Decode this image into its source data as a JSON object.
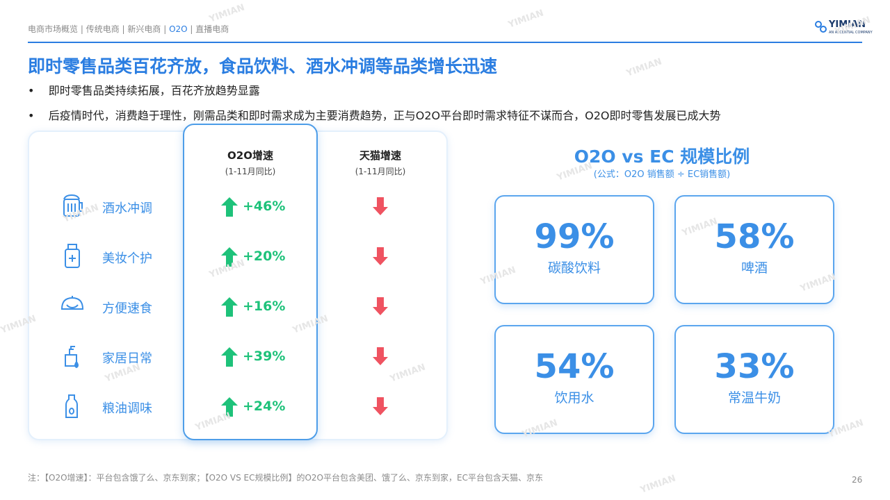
{
  "header": {
    "breadcrumb": [
      "电商市场概览",
      "传统电商",
      "新兴电商",
      "O2O",
      "直播电商"
    ],
    "logo": "YIMIAN",
    "logo_sub": "AN ASCENTIAL COMPANY"
  },
  "title": "即时零售品类百花齐放，食品饮料、酒水冲调等品类增长迅速",
  "bullets": [
    "即时零售品类持续拓展，百花齐放趋势显露",
    "后疫情时代，消费趋于理性，刚需品类和即时需求成为主要消费趋势，正与O2O平台即时需求特征不谋而合，O2O即时零售发展已成大势"
  ],
  "table": {
    "columns": [
      {
        "title": "O2O增速",
        "sub": "(1-11月同比)"
      },
      {
        "title": "天猫增速",
        "sub": "(1-11月同比)"
      }
    ],
    "rows": [
      {
        "category": "酒水冲调",
        "o2o": "+46%"
      },
      {
        "category": "美妆个护",
        "o2o": "+20%"
      },
      {
        "category": "方便速食",
        "o2o": "+16%"
      },
      {
        "category": "家居日常",
        "o2o": "+39%"
      },
      {
        "category": "粮油调味",
        "o2o": "+24%"
      }
    ]
  },
  "ratio": {
    "title": "O2O vs EC 规模比例",
    "subtitle": "(公式：O2O 销售额 ÷ EC销售额)",
    "cards": [
      {
        "value": "99%",
        "label": "碳酸饮料"
      },
      {
        "value": "58%",
        "label": "啤酒"
      },
      {
        "value": "54%",
        "label": "饮用水"
      },
      {
        "value": "33%",
        "label": "常温牛奶"
      }
    ]
  },
  "footnote": "注：【O2O增速】：平台包含饿了么、京东到家；【O2O  VS EC规模比例】的O2O平台包含美团、饿了么、京东到家，EC平台包含天猫、京东",
  "page_number": "26",
  "watermark": "YIMIAN"
}
